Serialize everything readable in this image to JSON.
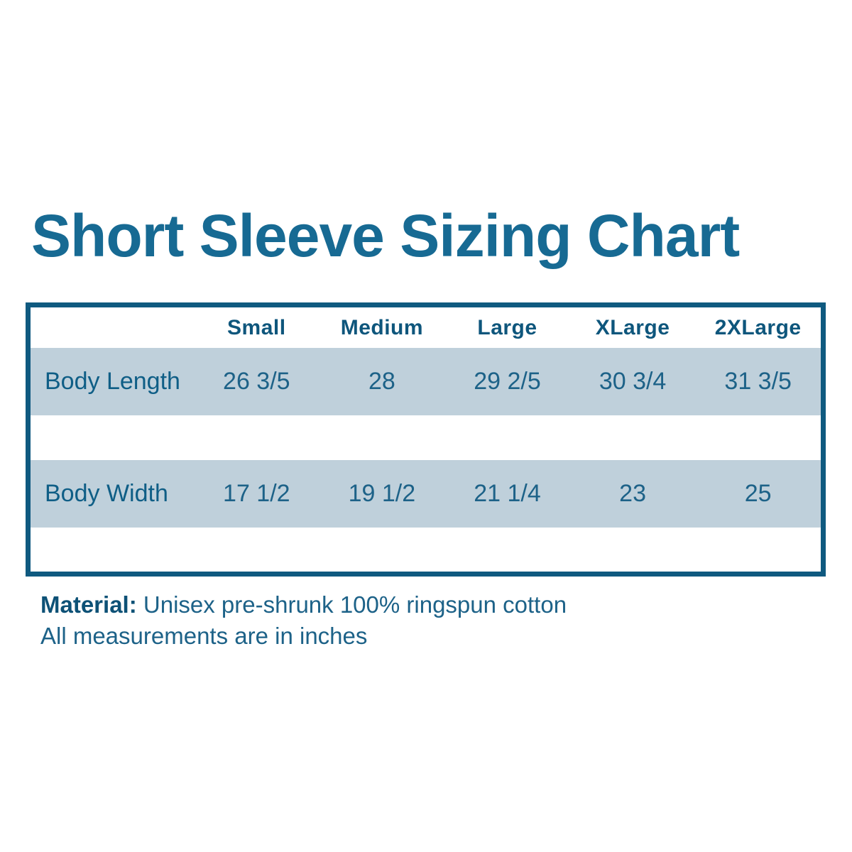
{
  "header": {
    "title": "Short Sleeve Sizing Chart"
  },
  "table": {
    "headers": [
      "Small",
      "Medium",
      "Large",
      "XLarge",
      "2XLarge"
    ],
    "rows": [
      {
        "label": "Body Length",
        "values": [
          "26 3/5",
          "28",
          "29 2/5",
          "30 3/4",
          "31 3/5"
        ]
      },
      {
        "label": "Body Width",
        "values": [
          "17 1/2",
          "19 1/2",
          "21 1/4",
          "23",
          "25"
        ]
      }
    ]
  },
  "footer": {
    "material_label": "Material:",
    "material_value": "Unisex pre-shrunk 100% ringspun cotton",
    "measurements_note": "All measurements are in inches"
  },
  "colors": {
    "title_text": "#176a93",
    "table_border": "#0f5a80",
    "row_fill": "#bfd0db",
    "header_text": "#0e567c",
    "cell_text": "#1d6288",
    "background": "#ffffff"
  },
  "chart_data": {
    "type": "table",
    "title": "Short Sleeve Sizing Chart",
    "columns": [
      "",
      "Small",
      "Medium",
      "Large",
      "XLarge",
      "2XLarge"
    ],
    "rows": [
      [
        "Body Length",
        "26 3/5",
        "28",
        "29 2/5",
        "30 3/4",
        "31 3/5"
      ],
      [
        "Body Width",
        "17 1/2",
        "19 1/2",
        "21 1/4",
        "23",
        "25"
      ]
    ],
    "units": "inches",
    "notes": [
      "Material: Unisex pre-shrunk 100% ringspun cotton",
      "All measurements are in inches"
    ]
  }
}
